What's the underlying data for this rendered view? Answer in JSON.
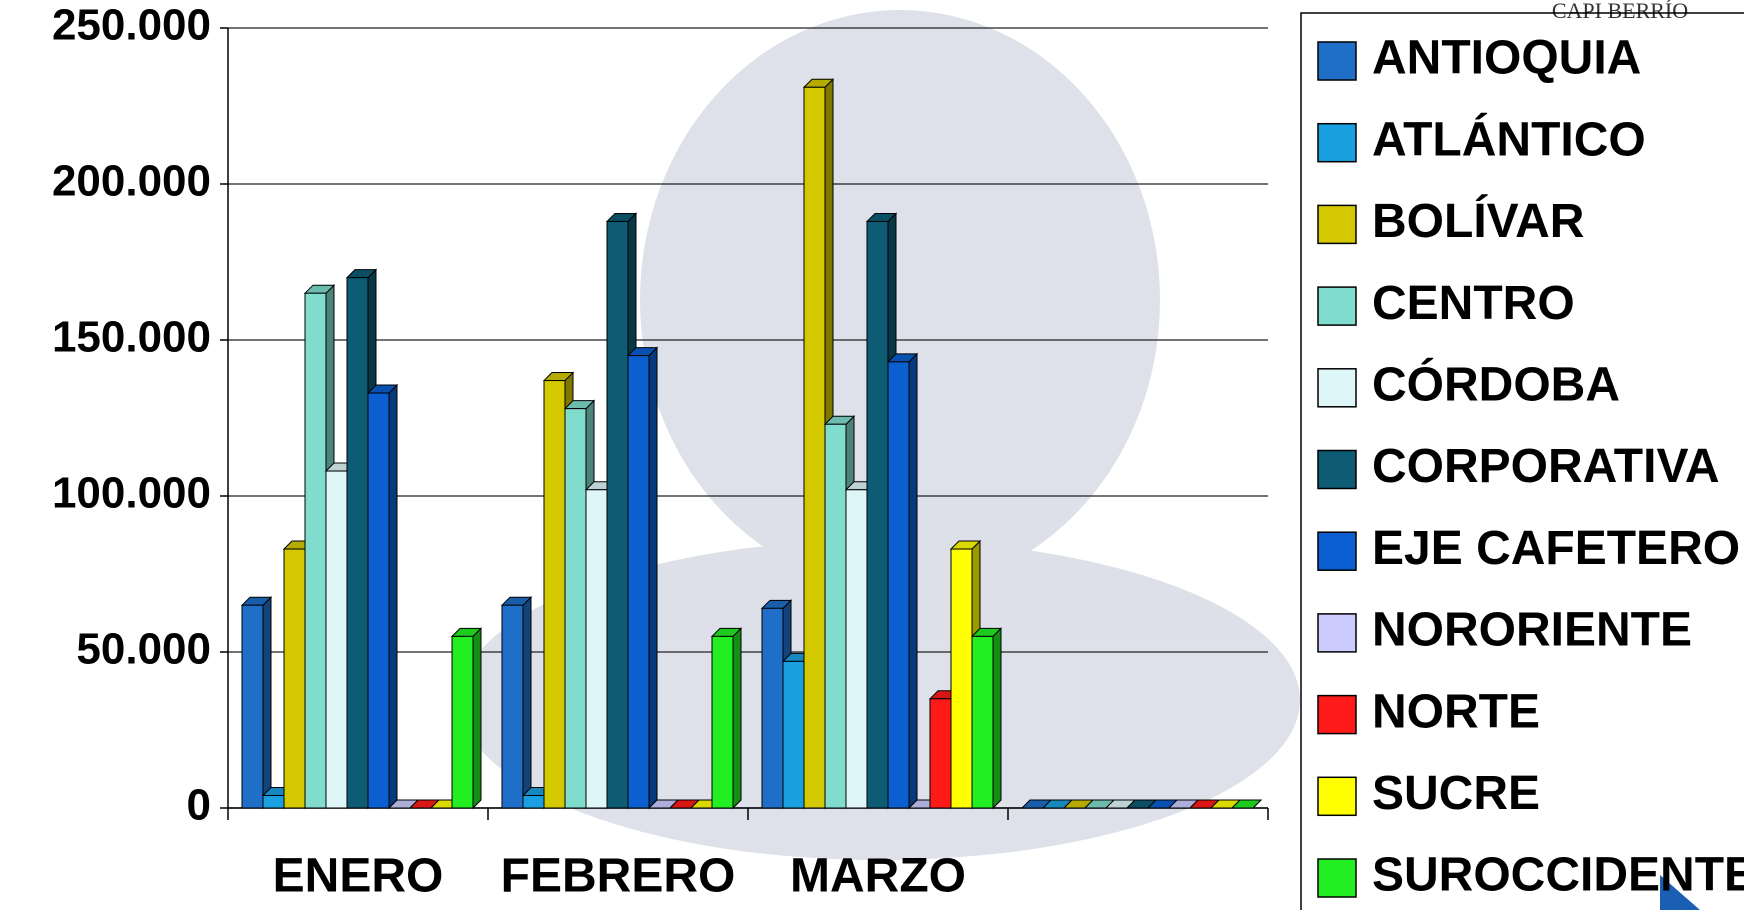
{
  "chart_data": {
    "type": "bar3d",
    "logo": "CAPI BERRÍO",
    "categories": [
      "ENERO",
      "FEBRERO",
      "MARZO",
      null
    ],
    "series": [
      {
        "name": "ANTIOQUIA",
        "color": "#1f6fc8",
        "values": [
          65000,
          65000,
          64000,
          0
        ]
      },
      {
        "name": "ATLÁNTICO",
        "color": "#1aa0e0",
        "values": [
          4000,
          4000,
          47000,
          0
        ]
      },
      {
        "name": "BOLÍVAR",
        "color": "#d4c800",
        "values": [
          83000,
          137000,
          231000,
          0
        ]
      },
      {
        "name": "CENTRO",
        "color": "#80dccc",
        "values": [
          165000,
          128000,
          123000,
          0
        ]
      },
      {
        "name": "CÓRDOBA",
        "color": "#dff6f8",
        "values": [
          108000,
          102000,
          102000,
          0
        ]
      },
      {
        "name": "CORPORATIVA",
        "color": "#0d5c74",
        "values": [
          170000,
          188000,
          188000,
          0
        ]
      },
      {
        "name": "EJE CAFETERO",
        "color": "#0b5fd0",
        "values": [
          133000,
          145000,
          143000,
          0
        ]
      },
      {
        "name": "NORORIENTE",
        "color": "#ccccff",
        "values": [
          0,
          0,
          0,
          0
        ]
      },
      {
        "name": "NORTE",
        "color": "#ff1a1a",
        "values": [
          0,
          0,
          35000,
          0
        ]
      },
      {
        "name": "SUCRE",
        "color": "#ffff00",
        "values": [
          0,
          0,
          83000,
          0
        ]
      },
      {
        "name": "SUROCCIDENTE",
        "color": "#22ee22",
        "values": [
          55000,
          55000,
          55000,
          0
        ]
      }
    ],
    "ylim": [
      0,
      250000
    ],
    "yticks": [
      0,
      {
        "value": 50000,
        "label": "50.000"
      },
      {
        "value": 100000,
        "label": "100.000"
      },
      {
        "value": 150000,
        "label": "150.000"
      },
      {
        "value": 200000,
        "label": "200.000"
      },
      {
        "value": 250000,
        "label": "250.000"
      }
    ],
    "grid": true,
    "legend": "right"
  }
}
